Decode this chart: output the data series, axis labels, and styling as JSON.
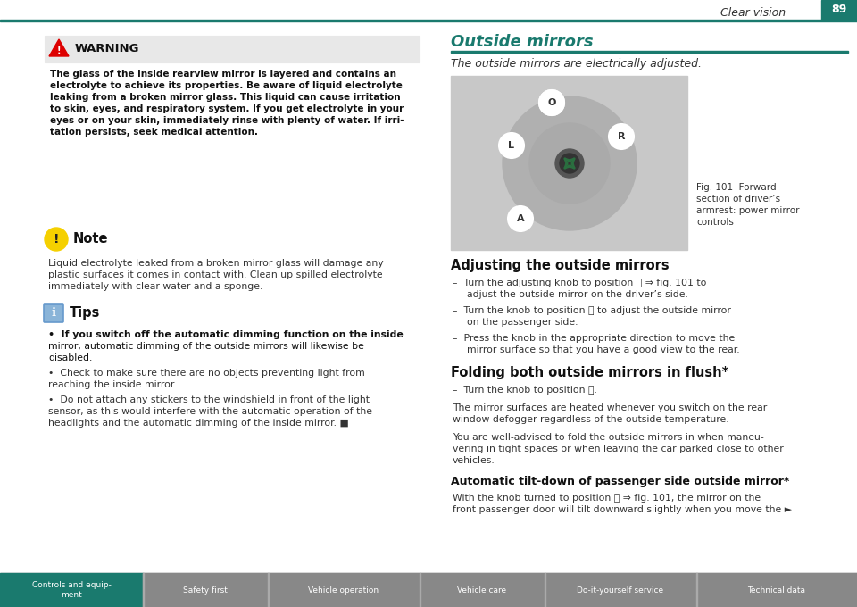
{
  "page_bg": "#ffffff",
  "teal_color": "#1a7a6e",
  "header_text": "Clear vision",
  "header_page": "89",
  "footer_tabs": [
    "Controls and equip-\nment",
    "Safety first",
    "Vehicle operation",
    "Vehicle care",
    "Do-it-yourself service",
    "Technical data"
  ],
  "footer_tab_widths": [
    160,
    140,
    170,
    140,
    170,
    180
  ],
  "warning_title": "WARNING",
  "warning_text_lines": [
    "The glass of the inside rearview mirror is layered and contains an",
    "electrolyte to achieve its properties. Be aware of liquid electrolyte",
    "leaking from a broken mirror glass. This liquid can cause irritation",
    "to skin, eyes, and respiratory system. If you get electrolyte in your",
    "eyes or on your skin, immediately rinse with plenty of water. If irri-",
    "tation persists, seek medical attention."
  ],
  "note_title": "Note",
  "note_text_lines": [
    "Liquid electrolyte leaked from a broken mirror glass will damage any",
    "plastic surfaces it comes in contact with. Clean up spilled electrolyte",
    "immediately with clear water and a sponge."
  ],
  "tips_title": "Tips",
  "tips_bullet1_lines": [
    "•  If you switch off the automatic dimming function on the inside",
    "mirror, automatic dimming of the outside mirrors will likewise be",
    "disabled."
  ],
  "tips_bullet2_lines": [
    "•  Check to make sure there are no objects preventing light from",
    "reaching the inside mirror."
  ],
  "tips_bullet3_lines": [
    "•  Do not attach any stickers to the windshield in front of the light",
    "sensor, as this would interfere with the automatic operation of the",
    "headlights and the automatic dimming of the inside mirror. ■"
  ],
  "right_title": "Outside mirrors",
  "right_subtitle": "The outside mirrors are electrically adjusted.",
  "fig_caption_lines": [
    "Fig. 101  Forward",
    "section of driver’s",
    "armrest: power mirror",
    "controls"
  ],
  "adj_title": "Adjusting the outside mirrors",
  "adj_bullet1": "Turn the adjusting knob to position Ⓛ ⇒ fig. 101 to",
  "adj_bullet1b": "adjust the outside mirror on the driver’s side.",
  "adj_bullet2": "Turn the knob to position Ⓡ to adjust the outside mirror",
  "adj_bullet2b": "on the passenger side.",
  "adj_bullet3": "Press the knob in the appropriate direction to move the",
  "adj_bullet3b": "mirror surface so that you have a good view to the rear.",
  "fold_title": "Folding both outside mirrors in flush*",
  "fold_bullet": "Turn the knob to position Ⓐ.",
  "fold_text1a": "The mirror surfaces are heated whenever you switch on the rear",
  "fold_text1b": "window defogger regardless of the outside temperature.",
  "fold_text2a": "You are well-advised to fold the outside mirrors in when maneu-",
  "fold_text2b": "vering in tight spaces or when leaving the car parked close to other",
  "fold_text2c": "vehicles.",
  "auto_title": "Automatic tilt-down of passenger side outside mirror*",
  "auto_text1": "With the knob turned to position Ⓡ ⇒ fig. 101, the mirror on the",
  "auto_text2": "front passenger door will tilt downward slightly when you move the ►"
}
